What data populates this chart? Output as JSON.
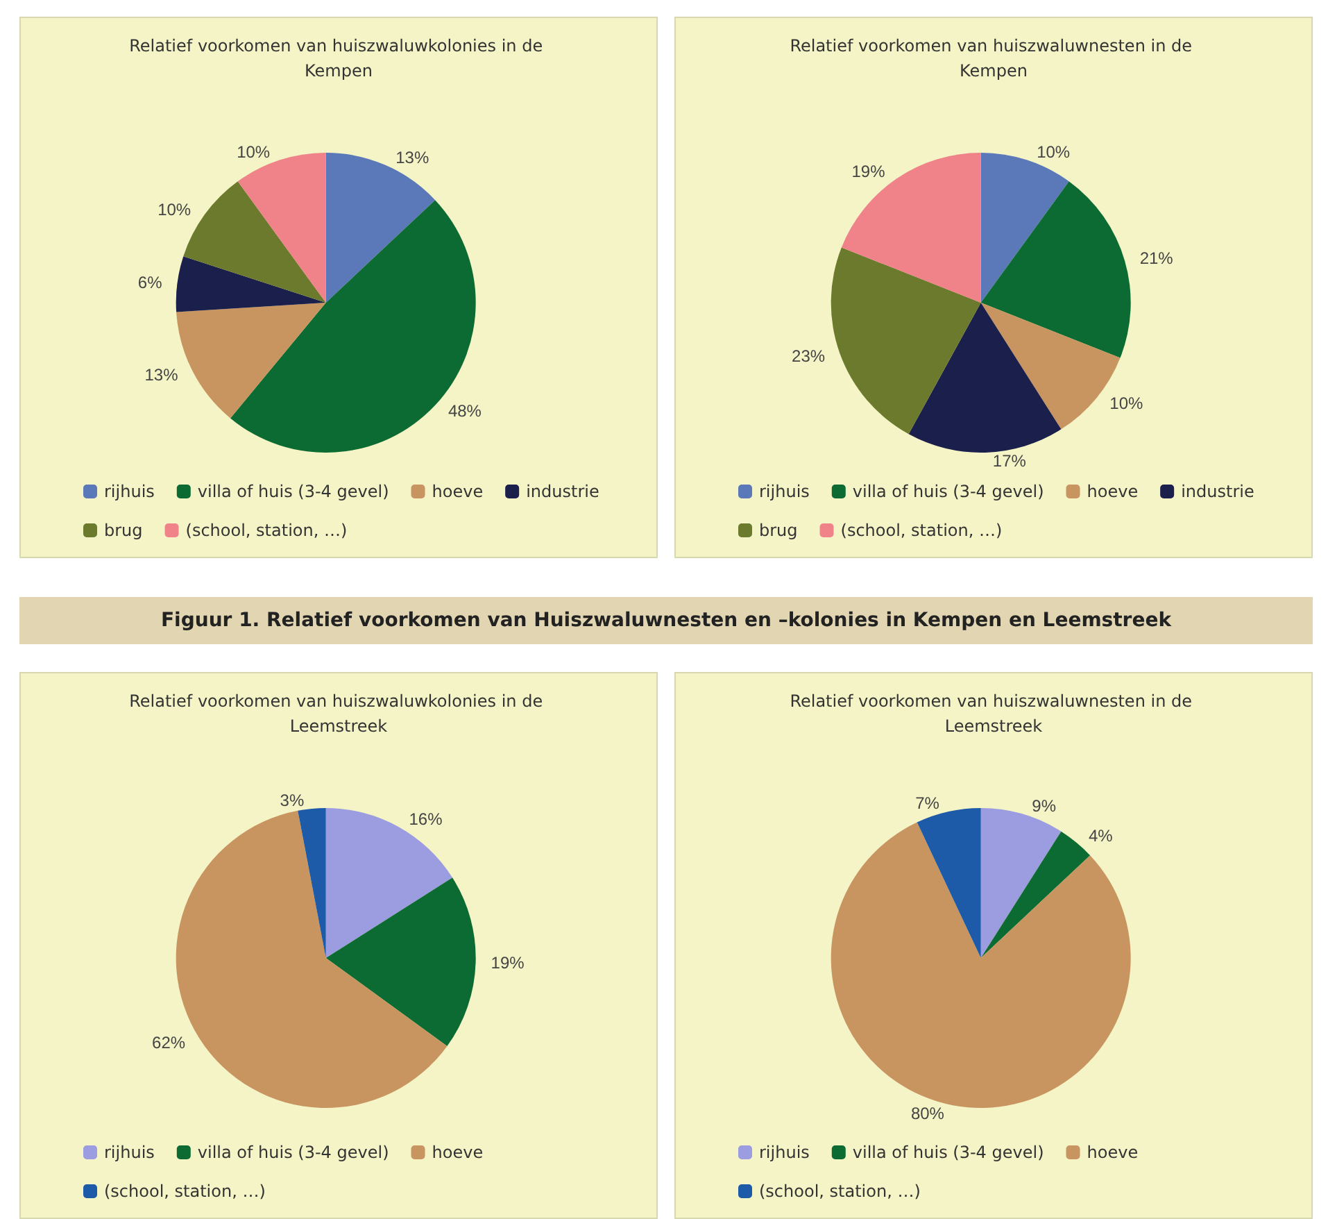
{
  "chart_data": [
    {
      "type": "pie",
      "title": "Relatief voorkomen van huiszwaluwkolonies in de Kempen",
      "categories": [
        "rijhuis",
        "villa of huis (3-4 gevel)",
        "hoeve",
        "industrie",
        "brug",
        "(school, station, …)"
      ],
      "values": [
        13,
        48,
        13,
        6,
        10,
        10
      ],
      "value_labels": [
        "13%",
        "48%",
        "13%",
        "6%",
        "10%",
        "10%"
      ],
      "colors": [
        "#5b78b8",
        "#0b6b32",
        "#c89460",
        "#1b1f4c",
        "#6b7a2c",
        "#f0828a"
      ],
      "legend": "bottom"
    },
    {
      "type": "pie",
      "title": "Relatief voorkomen van huiszwaluwnesten in de Kempen",
      "categories": [
        "rijhuis",
        "villa of huis (3-4 gevel)",
        "hoeve",
        "industrie",
        "brug",
        "(school, station, …)"
      ],
      "values": [
        10,
        21,
        10,
        17,
        23,
        19
      ],
      "value_labels": [
        "10%",
        "21%",
        "10%",
        "17%",
        "23%",
        "19%"
      ],
      "colors": [
        "#5b78b8",
        "#0b6b32",
        "#c89460",
        "#1b1f4c",
        "#6b7a2c",
        "#f0828a"
      ],
      "legend": "bottom"
    },
    {
      "type": "other",
      "title": "Figuur 1. Relatief voorkomen van Huiszwaluwnesten en –kolonies in Kempen en Leemstreek"
    },
    {
      "type": "pie",
      "title": "Relatief voorkomen van huiszwaluwkolonies in de Leemstreek",
      "categories": [
        "rijhuis",
        "villa of huis (3-4 gevel)",
        "hoeve",
        "(school, station, …)"
      ],
      "values": [
        16,
        19,
        62,
        3
      ],
      "value_labels": [
        "16%",
        "19%",
        "62%",
        "3%"
      ],
      "colors": [
        "#9c9ce0",
        "#0b6b32",
        "#c89460",
        "#1d5aa8"
      ],
      "legend": "bottom"
    },
    {
      "type": "pie",
      "title": "Relatief voorkomen van huiszwaluwnesten in de Leemstreek",
      "categories": [
        "rijhuis",
        "villa of huis (3-4 gevel)",
        "hoeve",
        "(school, station, …)"
      ],
      "values": [
        9,
        4,
        80,
        7
      ],
      "value_labels": [
        "9%",
        "4%",
        "80%",
        "7%"
      ],
      "colors": [
        "#9c9ce0",
        "#0b6b32",
        "#c89460",
        "#1d5aa8"
      ],
      "legend": "bottom"
    }
  ]
}
